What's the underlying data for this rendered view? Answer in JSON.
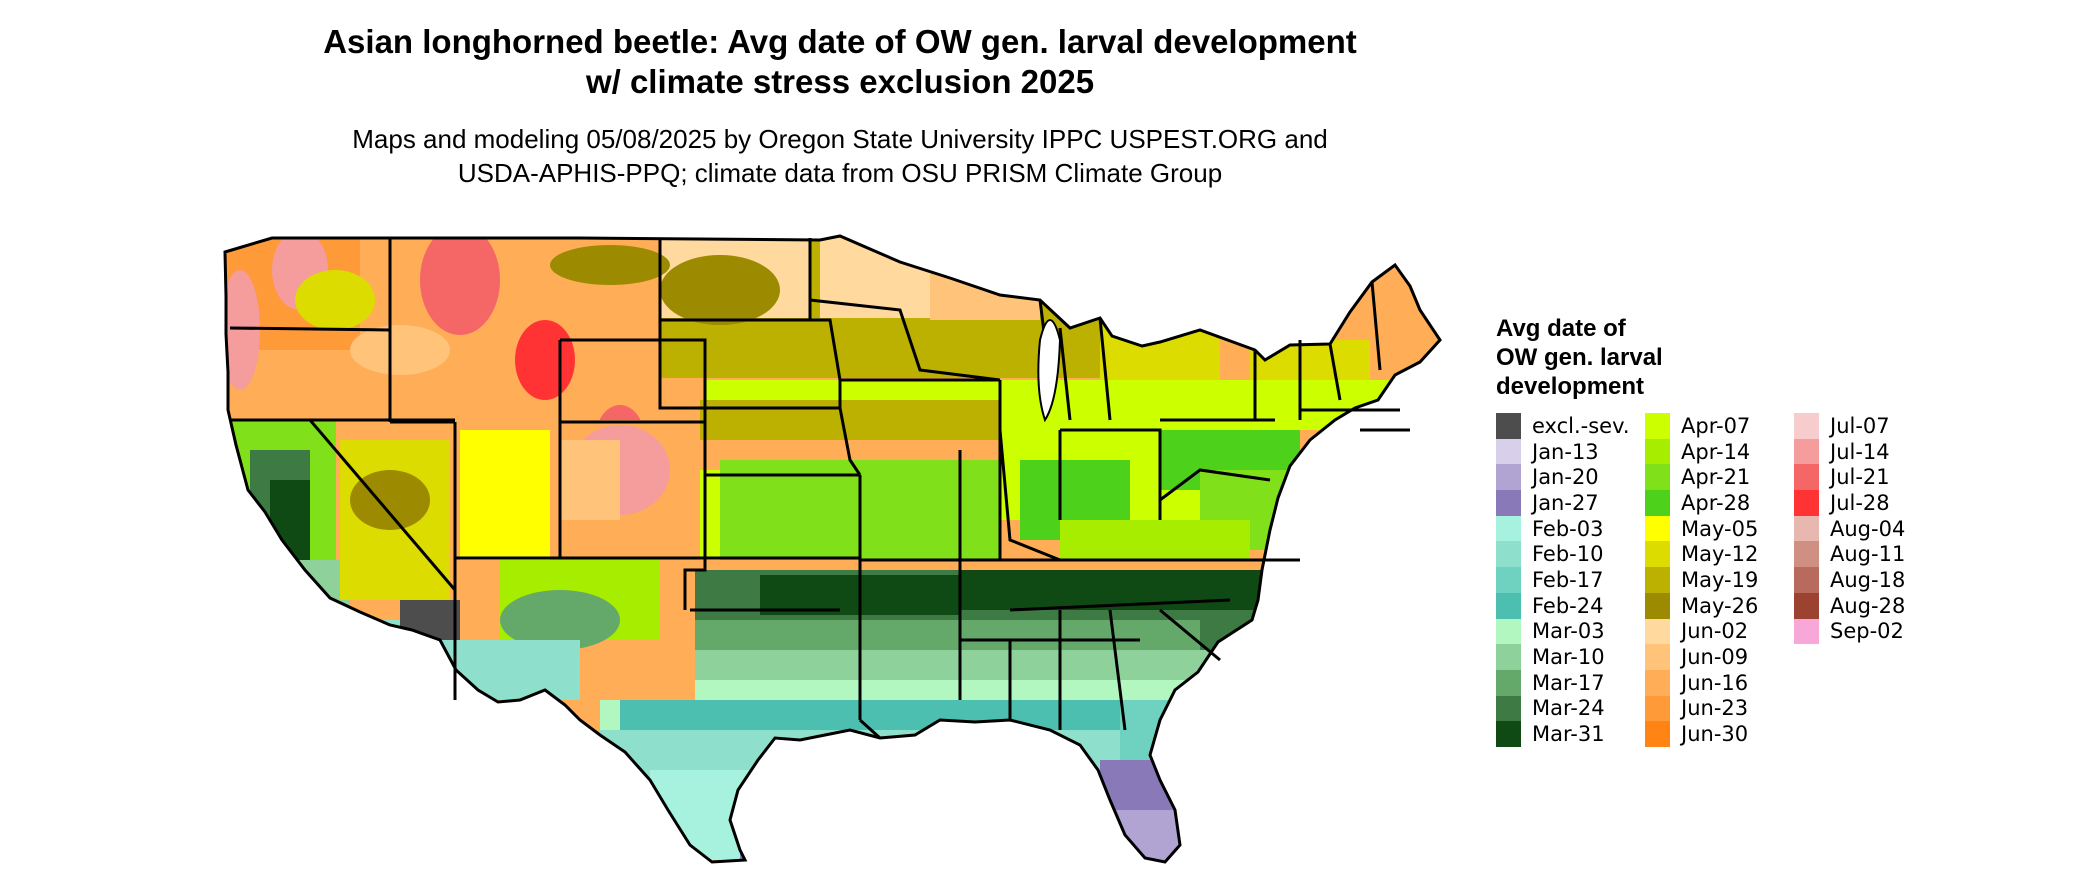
{
  "title": {
    "line1": "Asian longhorned beetle: Avg date of OW gen. larval development",
    "line2": "w/ climate stress exclusion 2025"
  },
  "subtitle": {
    "line1": "Maps and modeling 05/08/2025 by Oregon State University IPPC USPEST.ORG and",
    "line2": "USDA-APHIS-PPQ; climate data from OSU PRISM Climate Group"
  },
  "legend": {
    "title_lines": [
      "Avg date of",
      "OW gen. larval",
      "development"
    ],
    "items": [
      {
        "label": "excl.-sev.",
        "color": "#4d4d4d"
      },
      {
        "label": "Jan-13",
        "color": "#d8d0ea"
      },
      {
        "label": "Jan-20",
        "color": "#b1a3d2"
      },
      {
        "label": "Jan-27",
        "color": "#8a79b8"
      },
      {
        "label": "Feb-03",
        "color": "#a6f2de"
      },
      {
        "label": "Feb-10",
        "color": "#8ee0cc"
      },
      {
        "label": "Feb-17",
        "color": "#6fd1bf"
      },
      {
        "label": "Feb-24",
        "color": "#4cbfb0"
      },
      {
        "label": "Mar-03",
        "color": "#b3f7c0"
      },
      {
        "label": "Mar-10",
        "color": "#8fd19a"
      },
      {
        "label": "Mar-17",
        "color": "#64a86a"
      },
      {
        "label": "Mar-24",
        "color": "#3d7a44"
      },
      {
        "label": "Mar-31",
        "color": "#0f4a14"
      },
      {
        "label": "Apr-07",
        "color": "#ccff00"
      },
      {
        "label": "Apr-14",
        "color": "#a6ed00"
      },
      {
        "label": "Apr-21",
        "color": "#80e01a"
      },
      {
        "label": "Apr-28",
        "color": "#4dd11a"
      },
      {
        "label": "May-05",
        "color": "#ffff00"
      },
      {
        "label": "May-12",
        "color": "#dcdc00"
      },
      {
        "label": "May-19",
        "color": "#bcb000"
      },
      {
        "label": "May-26",
        "color": "#9c8a00"
      },
      {
        "label": "Jun-02",
        "color": "#ffd99e"
      },
      {
        "label": "Jun-09",
        "color": "#ffc47a"
      },
      {
        "label": "Jun-16",
        "color": "#ffad57"
      },
      {
        "label": "Jun-23",
        "color": "#ff9a38"
      },
      {
        "label": "Jun-30",
        "color": "#ff8414"
      },
      {
        "label": "Jul-07",
        "color": "#f7cccc"
      },
      {
        "label": "Jul-14",
        "color": "#f59c9c"
      },
      {
        "label": "Jul-21",
        "color": "#f56767"
      },
      {
        "label": "Jul-28",
        "color": "#ff3333"
      },
      {
        "label": "Aug-04",
        "color": "#e8b8b0"
      },
      {
        "label": "Aug-11",
        "color": "#cf8f83"
      },
      {
        "label": "Aug-18",
        "color": "#b86a5c"
      },
      {
        "label": "Aug-28",
        "color": "#9c4230"
      },
      {
        "label": "Sep-02",
        "color": "#f7a8d8"
      }
    ]
  }
}
